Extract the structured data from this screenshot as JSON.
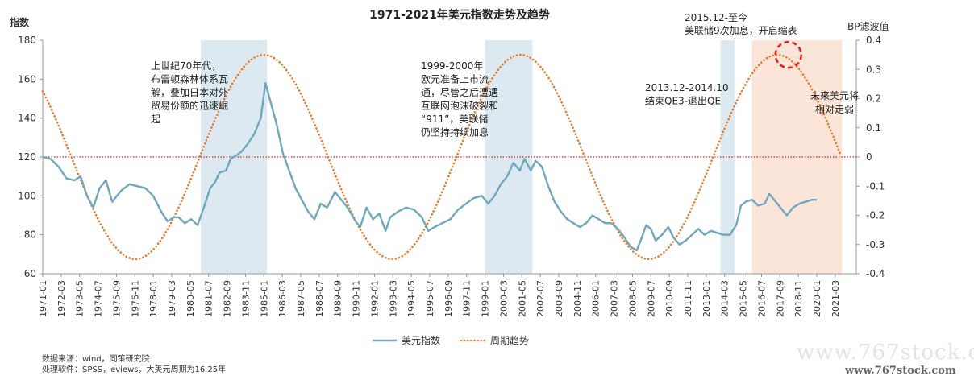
{
  "chart_data": {
    "type": "line",
    "title": "1971-2021年美元指数走势及趋势",
    "ylabel_left": "指数",
    "ylabel_right": "BP滤波值",
    "y_left": {
      "min": 60,
      "max": 180,
      "ticks": [
        "60",
        "80",
        "100",
        "120",
        "140",
        "160",
        "180"
      ]
    },
    "y_right": {
      "min": -0.4,
      "max": 0.4,
      "ticks": [
        "-0.4",
        "-0.3",
        "-0.2",
        "-0.1",
        "0",
        "0.1",
        "0.2",
        "0.3",
        "0.4"
      ]
    },
    "x_ticks": [
      "1971-01",
      "1972-03",
      "1973-05",
      "1974-07",
      "1975-09",
      "1976-11",
      "1978-01",
      "1979-03",
      "1980-05",
      "1981-07",
      "1982-09",
      "1983-11",
      "1985-01",
      "1986-03",
      "1987-05",
      "1988-07",
      "1989-09",
      "1990-11",
      "1992-01",
      "1993-03",
      "1994-05",
      "1995-07",
      "1996-09",
      "1997-11",
      "1999-01",
      "2000-03",
      "2001-05",
      "2002-07",
      "2003-09",
      "2004-11",
      "2006-01",
      "2007-03",
      "2008-05",
      "2009-07",
      "2010-09",
      "2011-11",
      "2013-01",
      "2014-03",
      "2015-05",
      "2016-07",
      "2017-09",
      "2018-11",
      "2020-01",
      "2021-03"
    ],
    "reference_line": {
      "axis": "right",
      "value": 0,
      "color": "#e8201e"
    },
    "shaded_periods": [
      {
        "from": 1981.0,
        "to": 1985.2,
        "color": "#dce9f1"
      },
      {
        "from": 1999.0,
        "to": 2002.0,
        "color": "#dce9f1"
      },
      {
        "from": 2013.9,
        "to": 2014.8,
        "color": "#dce9f1"
      },
      {
        "from": 2015.9,
        "to": 2021.6,
        "color": "#fbe5d9"
      }
    ],
    "series": [
      {
        "name": "美元指数",
        "axis": "left",
        "color": "#6fa8bd",
        "style": "solid",
        "points": [
          [
            1971.0,
            120
          ],
          [
            1971.5,
            119
          ],
          [
            1972.0,
            115
          ],
          [
            1972.5,
            109
          ],
          [
            1973.0,
            108
          ],
          [
            1973.4,
            110
          ],
          [
            1973.8,
            100
          ],
          [
            1974.2,
            94
          ],
          [
            1974.6,
            104
          ],
          [
            1975.0,
            108
          ],
          [
            1975.4,
            97
          ],
          [
            1975.7,
            100
          ],
          [
            1976.0,
            103
          ],
          [
            1976.5,
            106
          ],
          [
            1977.0,
            105
          ],
          [
            1977.5,
            104
          ],
          [
            1978.0,
            100
          ],
          [
            1978.5,
            92
          ],
          [
            1978.9,
            87
          ],
          [
            1979.3,
            89
          ],
          [
            1979.6,
            89
          ],
          [
            1980.0,
            86
          ],
          [
            1980.4,
            88
          ],
          [
            1980.8,
            85
          ],
          [
            1981.2,
            94
          ],
          [
            1981.6,
            104
          ],
          [
            1981.9,
            107
          ],
          [
            1982.2,
            112
          ],
          [
            1982.6,
            113
          ],
          [
            1982.9,
            119
          ],
          [
            1983.3,
            121
          ],
          [
            1983.6,
            123
          ],
          [
            1984.0,
            127
          ],
          [
            1984.4,
            132
          ],
          [
            1984.8,
            140
          ],
          [
            1985.1,
            158
          ],
          [
            1985.4,
            149
          ],
          [
            1985.8,
            137
          ],
          [
            1986.2,
            122
          ],
          [
            1986.6,
            113
          ],
          [
            1987.0,
            104
          ],
          [
            1987.4,
            98
          ],
          [
            1987.8,
            92
          ],
          [
            1988.2,
            88
          ],
          [
            1988.6,
            96
          ],
          [
            1989.0,
            94
          ],
          [
            1989.5,
            102
          ],
          [
            1989.9,
            98
          ],
          [
            1990.3,
            94
          ],
          [
            1990.8,
            87
          ],
          [
            1991.1,
            84
          ],
          [
            1991.5,
            94
          ],
          [
            1991.9,
            88
          ],
          [
            1992.3,
            91
          ],
          [
            1992.7,
            82
          ],
          [
            1993.0,
            89
          ],
          [
            1993.5,
            92
          ],
          [
            1994.0,
            94
          ],
          [
            1994.5,
            93
          ],
          [
            1995.0,
            89
          ],
          [
            1995.4,
            82
          ],
          [
            1995.8,
            84
          ],
          [
            1996.3,
            86
          ],
          [
            1996.8,
            88
          ],
          [
            1997.3,
            93
          ],
          [
            1997.8,
            96
          ],
          [
            1998.3,
            99
          ],
          [
            1998.8,
            100
          ],
          [
            1999.2,
            96
          ],
          [
            1999.6,
            100
          ],
          [
            2000.0,
            106
          ],
          [
            2000.4,
            110
          ],
          [
            2000.8,
            117
          ],
          [
            2001.2,
            113
          ],
          [
            2001.5,
            119
          ],
          [
            2001.9,
            113
          ],
          [
            2002.2,
            118
          ],
          [
            2002.6,
            115
          ],
          [
            2003.0,
            105
          ],
          [
            2003.4,
            97
          ],
          [
            2003.8,
            92
          ],
          [
            2004.2,
            88
          ],
          [
            2004.6,
            86
          ],
          [
            2005.0,
            84
          ],
          [
            2005.4,
            86
          ],
          [
            2005.8,
            90
          ],
          [
            2006.2,
            88
          ],
          [
            2006.6,
            86
          ],
          [
            2007.0,
            86
          ],
          [
            2007.4,
            83
          ],
          [
            2007.8,
            79
          ],
          [
            2008.2,
            74
          ],
          [
            2008.6,
            72
          ],
          [
            2008.9,
            78
          ],
          [
            2009.2,
            85
          ],
          [
            2009.5,
            83
          ],
          [
            2009.8,
            77
          ],
          [
            2010.2,
            80
          ],
          [
            2010.6,
            84
          ],
          [
            2010.9,
            79
          ],
          [
            2011.3,
            75
          ],
          [
            2011.7,
            77
          ],
          [
            2012.1,
            80
          ],
          [
            2012.5,
            83
          ],
          [
            2012.9,
            80
          ],
          [
            2013.3,
            82
          ],
          [
            2013.7,
            81
          ],
          [
            2014.1,
            80
          ],
          [
            2014.5,
            80
          ],
          [
            2014.9,
            85
          ],
          [
            2015.2,
            95
          ],
          [
            2015.5,
            97
          ],
          [
            2015.9,
            98
          ],
          [
            2016.3,
            95
          ],
          [
            2016.7,
            96
          ],
          [
            2017.0,
            101
          ],
          [
            2017.4,
            97
          ],
          [
            2017.8,
            93
          ],
          [
            2018.1,
            90
          ],
          [
            2018.5,
            94
          ],
          [
            2018.9,
            96
          ],
          [
            2019.3,
            97
          ],
          [
            2019.7,
            98
          ],
          [
            2020.0,
            98
          ]
        ]
      },
      {
        "name": "周期趋势",
        "axis": "right",
        "color": "#e87a2e",
        "style": "dotted",
        "cycle": {
          "period_years": 16.25,
          "amplitude": 0.35,
          "peak_at": 1985.0,
          "from": 1971.0,
          "to": 2021.5
        }
      }
    ],
    "annotations": [
      {
        "lines": [
          "上世纪70年代，",
          "布雷顿森林体系瓦",
          "解，叠加日本对外",
          "贸易份额的迅速崛",
          "起"
        ]
      },
      {
        "lines": [
          "1999-2000年",
          "欧元准备上市流",
          "通，尽管之后遭遇",
          "互联网泡沫破裂和",
          "“911”，美联储",
          "仍坚持持续加息"
        ]
      },
      {
        "lines": [
          "2013.12-2014.10",
          "结束QE3-退出QE"
        ]
      },
      {
        "lines": [
          "2015.12-至今",
          "美联储9次加息，开启缩表"
        ]
      },
      {
        "lines": [
          "未来美元将",
          "相对走弱"
        ]
      }
    ],
    "highlight_circle": {
      "x": 2018.2,
      "y_right": 0.35,
      "color": "#e8201e"
    },
    "footnotes": [
      "数据来源：wind，同策研究院",
      "处理软件：SPSS，eviews，大美元周期为16.25年"
    ]
  },
  "watermark": {
    "big": "www.767stock.com",
    "small": "www.767stock.com"
  }
}
